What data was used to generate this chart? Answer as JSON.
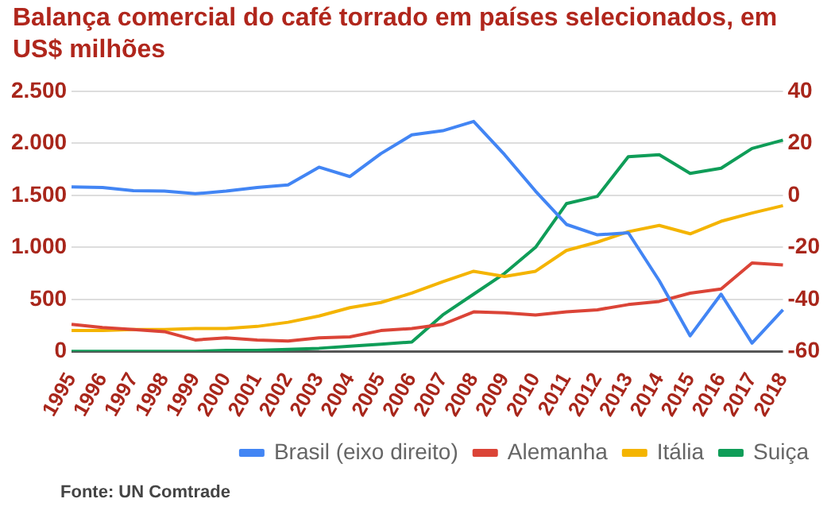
{
  "chart_data": {
    "type": "line",
    "title": "Balança comercial do café torrado em países selecionados, em US$ milhões",
    "categories": [
      "1995",
      "1996",
      "1997",
      "1998",
      "1999",
      "2000",
      "2001",
      "2002",
      "2003",
      "2004",
      "2005",
      "2006",
      "2007",
      "2008",
      "2009",
      "2010",
      "2011",
      "2012",
      "2013",
      "2014",
      "2015",
      "2016",
      "2017",
      "2018"
    ],
    "series": [
      {
        "name": "Brasil (eixo direito)",
        "color": "#4285f4",
        "axis": "y2",
        "values": [
          3.2,
          3.0,
          1.8,
          1.6,
          0.6,
          1.6,
          3.0,
          4.0,
          10.8,
          7.2,
          16,
          23.2,
          24.8,
          28.4,
          15.6,
          1.6,
          -11.2,
          -15.2,
          -14.4,
          -32.8,
          -54,
          -38,
          -56.8,
          -44
        ]
      },
      {
        "name": "Alemanha",
        "color": "#db4437",
        "values": [
          260,
          230,
          210,
          190,
          110,
          130,
          110,
          100,
          130,
          140,
          200,
          220,
          260,
          380,
          370,
          350,
          380,
          400,
          450,
          480,
          560,
          600,
          850,
          830
        ]
      },
      {
        "name": "Itália",
        "color": "#f4b400",
        "values": [
          200,
          200,
          210,
          210,
          220,
          220,
          240,
          280,
          340,
          420,
          470,
          560,
          670,
          770,
          720,
          770,
          970,
          1050,
          1150,
          1210,
          1130,
          1250,
          1330,
          1400
        ]
      },
      {
        "name": "Suiça",
        "color": "#0f9d58",
        "values": [
          0,
          0,
          0,
          0,
          0,
          10,
          10,
          20,
          30,
          50,
          70,
          90,
          350,
          550,
          750,
          1000,
          1420,
          1490,
          1870,
          1890,
          1710,
          1760,
          1950,
          2030
        ]
      }
    ],
    "ylim": [
      0,
      2500
    ],
    "yticks": [
      0,
      {
        "value": 500,
        "label": "500"
      },
      {
        "value": 1000,
        "label": "1.000"
      },
      {
        "value": 1500,
        "label": "1.500"
      },
      {
        "value": 2000,
        "label": "2.000"
      },
      {
        "value": 2500,
        "label": "2.500"
      }
    ],
    "y2lim": [
      -60,
      40
    ],
    "y2ticks": [
      -60,
      -40,
      -20,
      0,
      20,
      40
    ],
    "grid": "y",
    "legend": "bottom",
    "marker": "none",
    "line_style": "solid",
    "annotations": [
      "Fonte: UN Comtrade"
    ]
  }
}
